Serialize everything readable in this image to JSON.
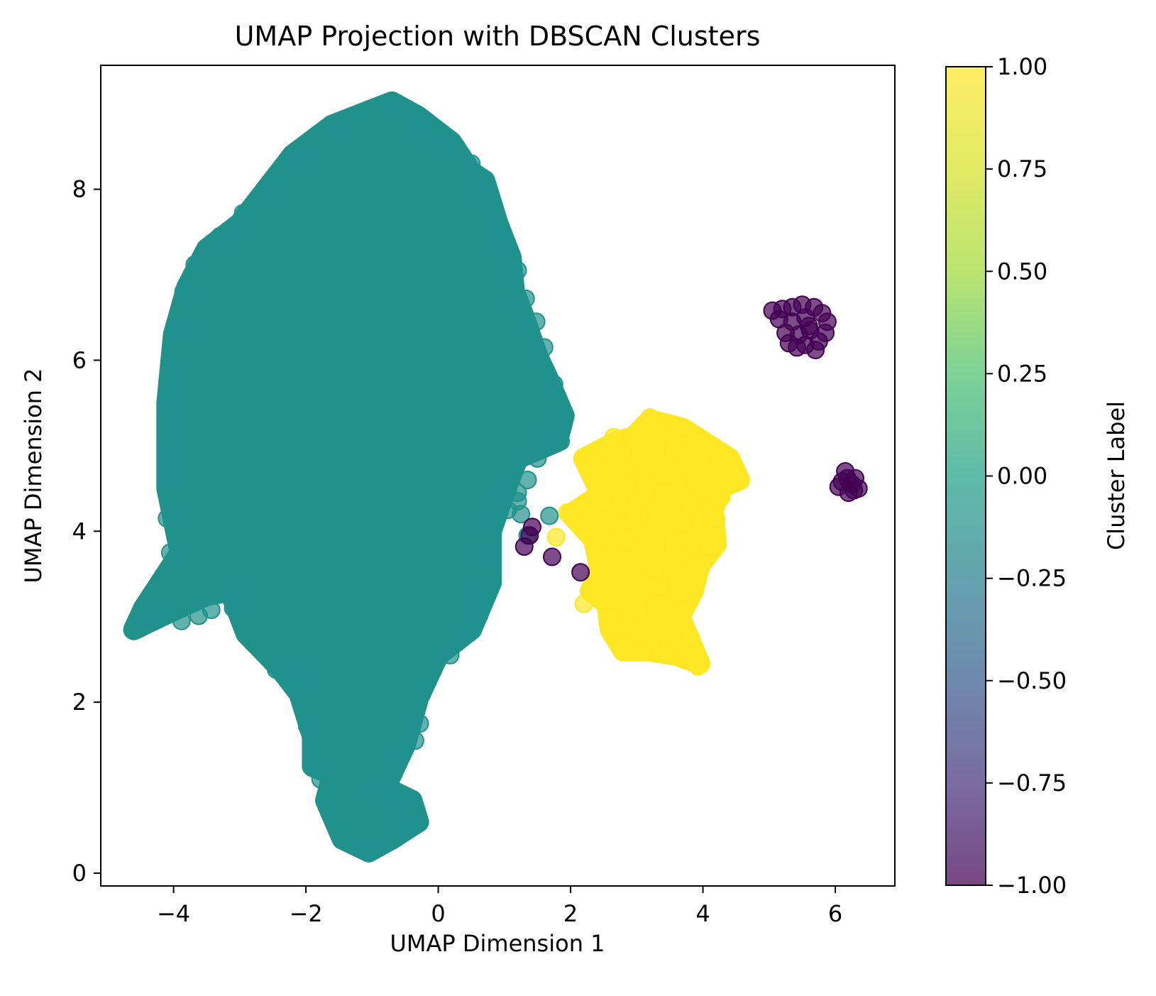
{
  "chart_data": {
    "type": "scatter",
    "title": "UMAP Projection with DBSCAN Clusters",
    "xlabel": "UMAP Dimension 1",
    "ylabel": "UMAP Dimension 2",
    "xlim": [
      -5.1,
      6.9
    ],
    "ylim": [
      -0.15,
      9.45
    ],
    "xticks": [
      {
        "value": -4,
        "label": "−4"
      },
      {
        "value": -2,
        "label": "−2"
      },
      {
        "value": 0,
        "label": "0"
      },
      {
        "value": 2,
        "label": "2"
      },
      {
        "value": 4,
        "label": "4"
      },
      {
        "value": 6,
        "label": "6"
      }
    ],
    "yticks": [
      {
        "value": 0,
        "label": "0"
      },
      {
        "value": 2,
        "label": "2"
      },
      {
        "value": 4,
        "label": "4"
      },
      {
        "value": 6,
        "label": "6"
      },
      {
        "value": 8,
        "label": "8"
      }
    ],
    "grid": false,
    "colormap": "viridis",
    "colors": {
      "cluster_0": "#21918c",
      "cluster_1": "#fde725",
      "noise": "#440154"
    },
    "point_alpha": 0.7,
    "colorbar": {
      "label": "Cluster Label",
      "range": [
        -1.0,
        1.0
      ],
      "ticks": [
        {
          "value": 1.0,
          "label": "1.00"
        },
        {
          "value": 0.75,
          "label": "0.75"
        },
        {
          "value": 0.5,
          "label": "0.50"
        },
        {
          "value": 0.25,
          "label": "0.25"
        },
        {
          "value": 0.0,
          "label": "0.00"
        },
        {
          "value": -0.25,
          "label": "−0.25"
        },
        {
          "value": -0.5,
          "label": "−0.50"
        },
        {
          "value": -0.75,
          "label": "−0.75"
        },
        {
          "value": -1.0,
          "label": "−1.00"
        }
      ]
    },
    "series": [
      {
        "cluster": 0,
        "outline": [
          [
            -0.7,
            9.02
          ],
          [
            -0.3,
            8.85
          ],
          [
            0.2,
            8.55
          ],
          [
            0.5,
            8.2
          ],
          [
            0.7,
            8.1
          ],
          [
            0.9,
            7.6
          ],
          [
            1.1,
            7.2
          ],
          [
            1.15,
            6.8
          ],
          [
            1.3,
            6.5
          ],
          [
            1.5,
            6.05
          ],
          [
            1.65,
            5.8
          ],
          [
            1.9,
            5.35
          ],
          [
            1.8,
            5.05
          ],
          [
            1.2,
            4.85
          ],
          [
            1.0,
            4.45
          ],
          [
            0.8,
            4.0
          ],
          [
            0.8,
            3.4
          ],
          [
            0.5,
            2.85
          ],
          [
            0.0,
            2.55
          ],
          [
            -0.3,
            2.05
          ],
          [
            -0.5,
            1.5
          ],
          [
            -0.8,
            1.0
          ],
          [
            -0.4,
            0.85
          ],
          [
            -0.3,
            0.6
          ],
          [
            -0.7,
            0.4
          ],
          [
            -1.05,
            0.25
          ],
          [
            -1.45,
            0.4
          ],
          [
            -1.7,
            0.85
          ],
          [
            -1.6,
            1.15
          ],
          [
            -1.9,
            1.25
          ],
          [
            -1.9,
            1.6
          ],
          [
            -2.1,
            2.1
          ],
          [
            -2.4,
            2.4
          ],
          [
            -2.9,
            2.8
          ],
          [
            -3.15,
            3.3
          ],
          [
            -3.5,
            3.25
          ],
          [
            -4.2,
            3.0
          ],
          [
            -4.6,
            2.85
          ],
          [
            -4.45,
            3.1
          ],
          [
            -3.9,
            3.75
          ],
          [
            -4.1,
            4.5
          ],
          [
            -4.1,
            5.5
          ],
          [
            -4.0,
            6.3
          ],
          [
            -3.8,
            6.85
          ],
          [
            -3.5,
            7.3
          ],
          [
            -3.0,
            7.6
          ],
          [
            -2.6,
            8.0
          ],
          [
            -2.2,
            8.4
          ],
          [
            -1.6,
            8.75
          ],
          [
            -1.1,
            8.9
          ]
        ],
        "points": [
          [
            -4.52,
            2.86
          ],
          [
            -4.3,
            2.97
          ],
          [
            -4.12,
            3.02
          ],
          [
            -3.88,
            2.95
          ],
          [
            -3.62,
            3.01
          ],
          [
            -3.43,
            3.08
          ],
          [
            -3.1,
            3.1
          ],
          [
            -2.98,
            3.24
          ],
          [
            -2.45,
            2.38
          ],
          [
            -1.98,
            1.72
          ],
          [
            -1.85,
            1.25
          ],
          [
            -1.78,
            1.1
          ],
          [
            -0.88,
            0.92
          ],
          [
            -0.53,
            0.8
          ],
          [
            -0.42,
            0.86
          ],
          [
            -0.6,
            1.32
          ],
          [
            -0.35,
            1.55
          ],
          [
            -0.28,
            1.75
          ],
          [
            0.18,
            2.55
          ],
          [
            0.35,
            2.75
          ],
          [
            0.62,
            3.02
          ],
          [
            0.58,
            3.25
          ],
          [
            0.75,
            3.65
          ],
          [
            0.82,
            4.1
          ],
          [
            1.05,
            4.25
          ],
          [
            1.2,
            4.45
          ],
          [
            1.35,
            4.6
          ],
          [
            1.5,
            4.85
          ],
          [
            1.55,
            5.05
          ],
          [
            1.85,
            5.05
          ],
          [
            1.92,
            5.35
          ],
          [
            1.75,
            5.72
          ],
          [
            1.6,
            6.15
          ],
          [
            1.48,
            6.45
          ],
          [
            1.32,
            6.72
          ],
          [
            1.2,
            7.05
          ],
          [
            1.05,
            7.25
          ],
          [
            0.98,
            7.42
          ],
          [
            0.88,
            7.62
          ],
          [
            0.7,
            8.02
          ],
          [
            0.5,
            8.3
          ],
          [
            0.15,
            8.55
          ],
          [
            -0.28,
            8.75
          ],
          [
            -0.68,
            9.0
          ],
          [
            -1.55,
            8.75
          ],
          [
            -2.05,
            8.45
          ],
          [
            -2.25,
            8.35
          ],
          [
            -2.6,
            7.98
          ],
          [
            -2.95,
            7.72
          ],
          [
            -3.05,
            7.55
          ],
          [
            -3.3,
            7.45
          ],
          [
            -3.68,
            7.12
          ],
          [
            -3.85,
            6.8
          ],
          [
            -3.95,
            6.35
          ],
          [
            -4.05,
            5.85
          ],
          [
            -4.1,
            5.55
          ],
          [
            -4.08,
            4.95
          ],
          [
            -4.1,
            4.6
          ],
          [
            -4.1,
            4.15
          ],
          [
            -4.05,
            3.75
          ],
          [
            -1.98,
            2.2
          ],
          [
            -2.2,
            2.35
          ],
          [
            -1.2,
            0.3
          ],
          [
            -1.0,
            0.27
          ],
          [
            -0.5,
            0.5
          ],
          [
            1.68,
            4.18
          ],
          [
            1.25,
            4.2
          ],
          [
            1.35,
            3.95
          ],
          [
            1.2,
            4.35
          ],
          [
            1.05,
            4.48
          ]
        ]
      },
      {
        "cluster": 1,
        "outline": [
          [
            3.2,
            5.3
          ],
          [
            3.7,
            5.2
          ],
          [
            4.1,
            5.0
          ],
          [
            4.4,
            4.85
          ],
          [
            4.55,
            4.6
          ],
          [
            4.3,
            4.52
          ],
          [
            4.15,
            4.25
          ],
          [
            4.2,
            3.85
          ],
          [
            3.95,
            3.6
          ],
          [
            3.85,
            3.3
          ],
          [
            3.65,
            3.0
          ],
          [
            3.95,
            2.45
          ],
          [
            3.6,
            2.55
          ],
          [
            3.2,
            2.6
          ],
          [
            2.8,
            2.6
          ],
          [
            2.6,
            2.85
          ],
          [
            2.55,
            3.15
          ],
          [
            2.3,
            3.3
          ],
          [
            2.45,
            3.55
          ],
          [
            2.35,
            3.9
          ],
          [
            2.0,
            4.2
          ],
          [
            2.3,
            4.35
          ],
          [
            2.45,
            4.45
          ],
          [
            2.2,
            4.85
          ],
          [
            2.7,
            5.05
          ],
          [
            2.95,
            5.1
          ]
        ],
        "points": [
          [
            2.65,
            5.1
          ],
          [
            2.35,
            4.85
          ],
          [
            1.95,
            4.22
          ],
          [
            1.78,
            3.93
          ],
          [
            2.2,
            3.15
          ],
          [
            2.55,
            3.0
          ],
          [
            2.8,
            2.65
          ],
          [
            3.1,
            2.6
          ],
          [
            3.45,
            2.6
          ],
          [
            3.92,
            2.42
          ],
          [
            3.82,
            2.75
          ],
          [
            3.68,
            3.28
          ],
          [
            3.92,
            3.58
          ],
          [
            4.1,
            3.82
          ],
          [
            4.2,
            4.15
          ],
          [
            4.28,
            4.4
          ],
          [
            4.52,
            4.6
          ],
          [
            4.25,
            4.85
          ],
          [
            3.92,
            5.05
          ],
          [
            3.65,
            5.2
          ],
          [
            3.2,
            5.33
          ],
          [
            2.95,
            5.05
          ],
          [
            3.7,
            4.1
          ],
          [
            3.55,
            3.85
          ],
          [
            3.25,
            3.55
          ],
          [
            3.3,
            4.15
          ],
          [
            2.95,
            4.2
          ],
          [
            2.85,
            3.9
          ],
          [
            3.35,
            3.35
          ],
          [
            3.0,
            3.1
          ],
          [
            3.1,
            4.6
          ],
          [
            3.4,
            4.45
          ],
          [
            3.65,
            4.6
          ],
          [
            2.85,
            4.5
          ],
          [
            3.8,
            4.3
          ],
          [
            2.6,
            3.85
          ],
          [
            2.5,
            4.35
          ],
          [
            3.55,
            4.95
          ],
          [
            3.05,
            4.9
          ],
          [
            2.75,
            4.3
          ]
        ]
      },
      {
        "cluster": -1,
        "points": [
          [
            5.05,
            6.58
          ],
          [
            5.2,
            6.6
          ],
          [
            5.35,
            6.62
          ],
          [
            5.5,
            6.65
          ],
          [
            5.68,
            6.62
          ],
          [
            5.8,
            6.55
          ],
          [
            5.88,
            6.45
          ],
          [
            5.85,
            6.32
          ],
          [
            5.75,
            6.22
          ],
          [
            5.7,
            6.12
          ],
          [
            5.55,
            6.18
          ],
          [
            5.42,
            6.15
          ],
          [
            5.3,
            6.2
          ],
          [
            5.25,
            6.32
          ],
          [
            5.35,
            6.45
          ],
          [
            5.55,
            6.5
          ],
          [
            5.62,
            6.35
          ],
          [
            5.45,
            6.3
          ],
          [
            5.15,
            6.48
          ],
          [
            5.6,
            6.4
          ],
          [
            6.15,
            4.7
          ],
          [
            6.25,
            4.55
          ],
          [
            6.35,
            4.5
          ],
          [
            6.2,
            4.45
          ],
          [
            6.1,
            4.58
          ],
          [
            6.3,
            4.62
          ],
          [
            6.05,
            4.52
          ],
          [
            6.28,
            4.48
          ],
          [
            6.18,
            4.62
          ],
          [
            1.3,
            3.82
          ],
          [
            1.38,
            3.95
          ],
          [
            1.42,
            4.05
          ],
          [
            1.72,
            3.7
          ],
          [
            2.15,
            3.52
          ]
        ]
      }
    ]
  }
}
